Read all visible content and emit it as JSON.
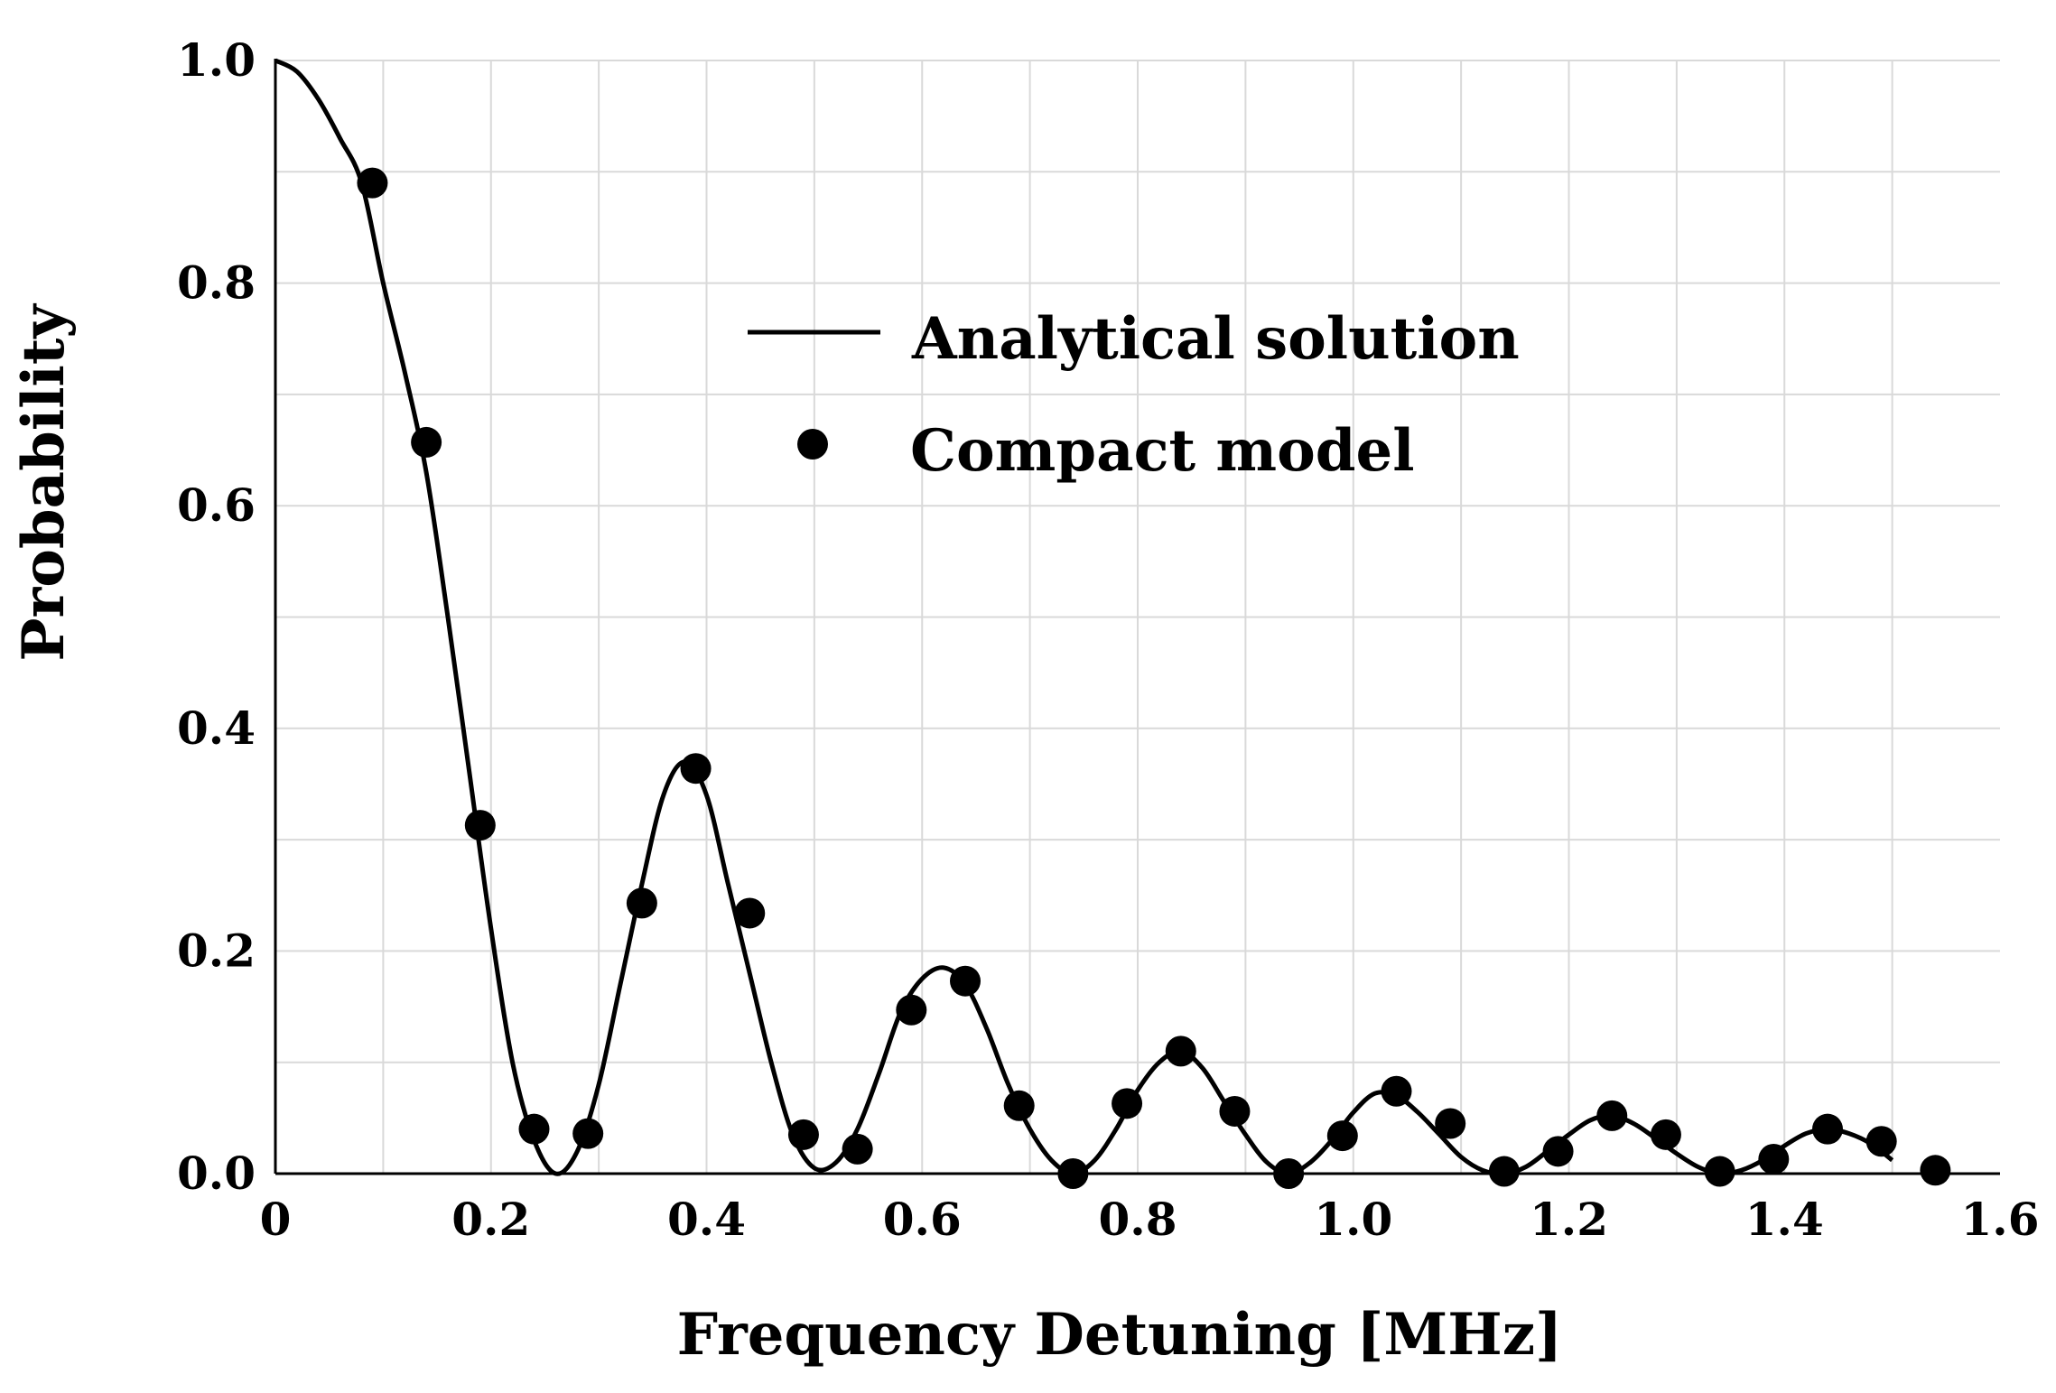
{
  "chart_data": {
    "type": "line",
    "title": "",
    "xlabel": "Frequency Detuning [MHz]",
    "ylabel": "Probability",
    "xlim": [
      0,
      1.6
    ],
    "ylim": [
      0,
      1.0
    ],
    "grid": true,
    "x_ticks": [
      0,
      0.2,
      0.4,
      0.6,
      0.8,
      1.0,
      1.2,
      1.4,
      1.6
    ],
    "x_tick_labels": [
      "0",
      "0.2",
      "0.4",
      "0.6",
      "0.8",
      "1.0",
      "1.2",
      "1.4",
      "1.6"
    ],
    "y_ticks": [
      0,
      0.2,
      0.4,
      0.6,
      0.8,
      1.0
    ],
    "y_tick_labels": [
      "0.0",
      "0.2",
      "0.4",
      "0.6",
      "0.8",
      "1.0"
    ],
    "legend_position": "upper-center",
    "series": [
      {
        "name": "Analytical solution",
        "style": "line",
        "color": "#000000",
        "x": [
          0,
          0.02,
          0.04,
          0.06,
          0.08,
          0.1,
          0.12,
          0.14,
          0.16,
          0.18,
          0.2,
          0.22,
          0.24,
          0.26,
          0.28,
          0.3,
          0.32,
          0.34,
          0.36,
          0.38,
          0.4,
          0.42,
          0.44,
          0.46,
          0.48,
          0.5,
          0.52,
          0.54,
          0.56,
          0.58,
          0.6,
          0.62,
          0.64,
          0.66,
          0.68,
          0.7,
          0.72,
          0.74,
          0.76,
          0.78,
          0.8,
          0.82,
          0.84,
          0.86,
          0.88,
          0.9,
          0.92,
          0.94,
          0.96,
          0.98,
          1.0,
          1.02,
          1.04,
          1.06,
          1.08,
          1.1,
          1.12,
          1.14,
          1.16,
          1.18,
          1.2,
          1.22,
          1.24,
          1.26,
          1.28,
          1.3,
          1.32,
          1.34,
          1.36,
          1.38,
          1.4,
          1.42,
          1.44,
          1.46,
          1.48,
          1.5
        ],
        "values": [
          1.0,
          0.99,
          0.965,
          0.93,
          0.89,
          0.8,
          0.72,
          0.63,
          0.5,
          0.36,
          0.22,
          0.1,
          0.03,
          0.0,
          0.02,
          0.08,
          0.17,
          0.26,
          0.34,
          0.37,
          0.34,
          0.26,
          0.18,
          0.1,
          0.035,
          0.005,
          0.01,
          0.04,
          0.09,
          0.145,
          0.175,
          0.185,
          0.17,
          0.13,
          0.08,
          0.04,
          0.012,
          0.0,
          0.012,
          0.04,
          0.075,
          0.1,
          0.11,
          0.095,
          0.065,
          0.035,
          0.01,
          0.0,
          0.01,
          0.03,
          0.055,
          0.072,
          0.07,
          0.055,
          0.035,
          0.015,
          0.003,
          0.0,
          0.006,
          0.02,
          0.035,
          0.048,
          0.052,
          0.045,
          0.032,
          0.018,
          0.006,
          0.0,
          0.003,
          0.012,
          0.025,
          0.036,
          0.04,
          0.036,
          0.027,
          0.012
        ]
      },
      {
        "name": "Compact model",
        "style": "marker",
        "color": "#000000",
        "x": [
          0.09,
          0.14,
          0.19,
          0.24,
          0.29,
          0.34,
          0.39,
          0.44,
          0.49,
          0.54,
          0.59,
          0.64,
          0.69,
          0.74,
          0.79,
          0.84,
          0.89,
          0.94,
          0.99,
          1.04,
          1.09,
          1.14,
          1.19,
          1.24,
          1.29,
          1.34,
          1.39,
          1.44,
          1.49,
          1.54
        ],
        "values": [
          0.89,
          0.657,
          0.313,
          0.04,
          0.036,
          0.243,
          0.364,
          0.234,
          0.035,
          0.022,
          0.147,
          0.173,
          0.061,
          0.0,
          0.063,
          0.11,
          0.056,
          0.0,
          0.034,
          0.074,
          0.045,
          0.002,
          0.02,
          0.052,
          0.035,
          0.002,
          0.013,
          0.04,
          0.029,
          0.003
        ]
      }
    ]
  }
}
